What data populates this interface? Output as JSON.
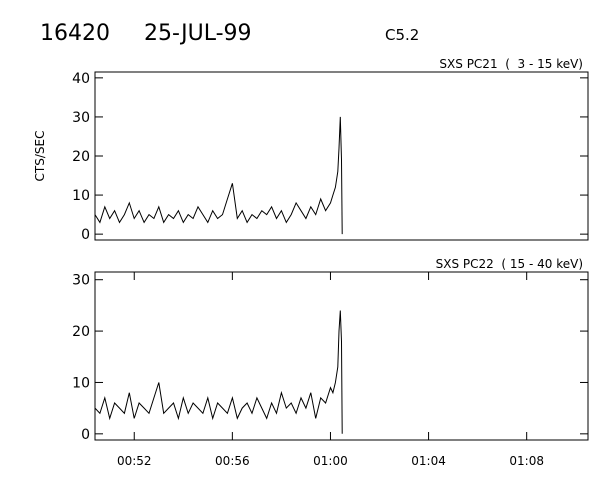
{
  "header": {
    "id": "16420",
    "date": "25-JUL-99",
    "class": "C5.2"
  },
  "chart_data": [
    {
      "type": "line",
      "title": "SXS PC21  (  3 - 15 keV)",
      "ylabel": "CTS/SEC",
      "color": "#000000",
      "x": [
        50.4,
        50.6,
        50.8,
        51.0,
        51.2,
        51.4,
        51.6,
        51.8,
        52.0,
        52.2,
        52.4,
        52.6,
        52.8,
        53.0,
        53.2,
        53.4,
        53.6,
        53.8,
        54.0,
        54.2,
        54.4,
        54.6,
        54.8,
        55.0,
        55.2,
        55.4,
        55.6,
        55.8,
        56.0,
        56.2,
        56.4,
        56.6,
        56.8,
        57.0,
        57.2,
        57.4,
        57.6,
        57.8,
        58.0,
        58.2,
        58.4,
        58.6,
        58.8,
        59.0,
        59.2,
        59.4,
        59.6,
        59.8,
        60.0,
        60.1,
        60.2,
        60.3,
        60.35,
        60.4,
        60.45,
        60.48
      ],
      "values": [
        5,
        3,
        7,
        4,
        6,
        3,
        5,
        8,
        4,
        6,
        3,
        5,
        4,
        7,
        3,
        5,
        4,
        6,
        3,
        5,
        4,
        7,
        5,
        3,
        6,
        4,
        5,
        9,
        13,
        4,
        6,
        3,
        5,
        4,
        6,
        5,
        7,
        4,
        6,
        3,
        5,
        8,
        6,
        4,
        7,
        5,
        9,
        6,
        8,
        10,
        12,
        16,
        22,
        30,
        19,
        0
      ],
      "xlim": [
        50.4,
        70.5
      ],
      "ylim": [
        -1.5,
        41.5
      ],
      "yticks": [
        0,
        10,
        20,
        30,
        40
      ]
    },
    {
      "type": "line",
      "title": "SXS PC22  ( 15 - 40 keV)",
      "color": "#000000",
      "x": [
        50.4,
        50.6,
        50.8,
        51.0,
        51.2,
        51.4,
        51.6,
        51.8,
        52.0,
        52.2,
        52.4,
        52.6,
        52.8,
        53.0,
        53.2,
        53.4,
        53.6,
        53.8,
        54.0,
        54.2,
        54.4,
        54.6,
        54.8,
        55.0,
        55.2,
        55.4,
        55.6,
        55.8,
        56.0,
        56.2,
        56.4,
        56.6,
        56.8,
        57.0,
        57.2,
        57.4,
        57.6,
        57.8,
        58.0,
        58.2,
        58.4,
        58.6,
        58.8,
        59.0,
        59.2,
        59.4,
        59.6,
        59.8,
        60.0,
        60.1,
        60.2,
        60.3,
        60.35,
        60.4,
        60.45,
        60.48
      ],
      "values": [
        5,
        4,
        7,
        3,
        6,
        5,
        4,
        8,
        3,
        6,
        5,
        4,
        7,
        10,
        4,
        5,
        6,
        3,
        7,
        4,
        6,
        5,
        4,
        7,
        3,
        6,
        5,
        4,
        7,
        3,
        5,
        6,
        4,
        7,
        5,
        3,
        6,
        4,
        8,
        5,
        6,
        4,
        7,
        5,
        8,
        3,
        7,
        6,
        9,
        8,
        10,
        13,
        20,
        24,
        18,
        0
      ],
      "xlim": [
        50.4,
        70.5
      ],
      "ylim": [
        -1.2,
        31.5
      ],
      "yticks": [
        0,
        10,
        20,
        30
      ],
      "xticks": [
        {
          "value": 52,
          "label": "00:52"
        },
        {
          "value": 56,
          "label": "00:56"
        },
        {
          "value": 60,
          "label": "01:00"
        },
        {
          "value": 64,
          "label": "01:04"
        },
        {
          "value": 68,
          "label": "01:08"
        }
      ]
    }
  ]
}
